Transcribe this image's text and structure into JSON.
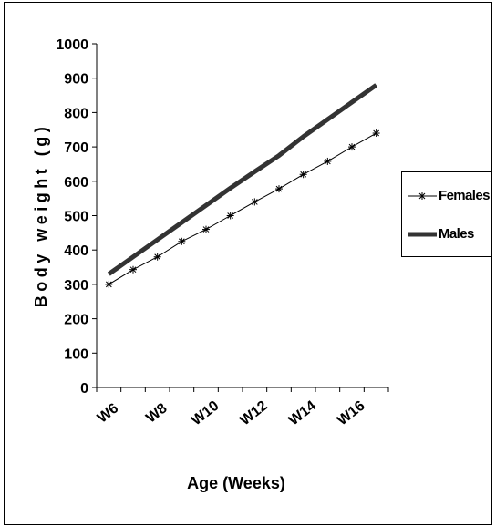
{
  "chart_data": {
    "type": "line",
    "title": "",
    "xlabel": "Age (Weeks)",
    "ylabel": "Body weight (g)",
    "x_tick_labels": [
      "W6",
      "W8",
      "W10",
      "W12",
      "W14",
      "W16"
    ],
    "y_tick_labels": [
      "0",
      "100",
      "200",
      "300",
      "400",
      "500",
      "600",
      "700",
      "800",
      "900",
      "1000"
    ],
    "ylim": [
      0,
      1000
    ],
    "x": [
      "W6",
      "W7",
      "W8",
      "W9",
      "W10",
      "W11",
      "W12",
      "W13",
      "W14",
      "W15",
      "W16",
      "W17"
    ],
    "series": [
      {
        "name": "Females",
        "marker": "asterisk",
        "color": "#000000",
        "values": [
          300,
          343,
          380,
          425,
          460,
          500,
          540,
          578,
          620,
          658,
          700,
          740
        ]
      },
      {
        "name": "Males",
        "marker": "none",
        "color": "#333333",
        "values": [
          330,
          380,
          430,
          480,
          530,
          580,
          628,
          675,
          730,
          780,
          830,
          880
        ]
      }
    ],
    "grid": false,
    "legend_position": "right"
  }
}
